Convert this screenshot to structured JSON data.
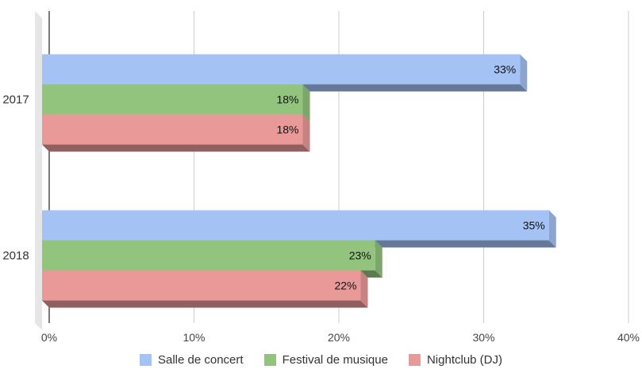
{
  "chart_data": {
    "type": "bar",
    "orientation": "horizontal",
    "style": "3d",
    "categories": [
      "2017",
      "2018"
    ],
    "series": [
      {
        "name": "Salle de concert",
        "values": [
          33,
          35
        ],
        "color": "#a4c2f4",
        "labels": [
          "33%",
          "35%"
        ]
      },
      {
        "name": "Festival de musique",
        "values": [
          18,
          23
        ],
        "color": "#93c47d",
        "labels": [
          "18%",
          "23%"
        ]
      },
      {
        "name": "Nightclub (DJ)",
        "values": [
          18,
          22
        ],
        "color": "#ea9999",
        "labels": [
          "18%",
          "22%"
        ]
      }
    ],
    "xlim": [
      0,
      40
    ],
    "xticks": [
      0,
      10,
      20,
      30,
      40
    ],
    "xtick_labels": [
      "0%",
      "10%",
      "20%",
      "30%",
      "40%"
    ],
    "grid": true,
    "legend": "bottom"
  }
}
